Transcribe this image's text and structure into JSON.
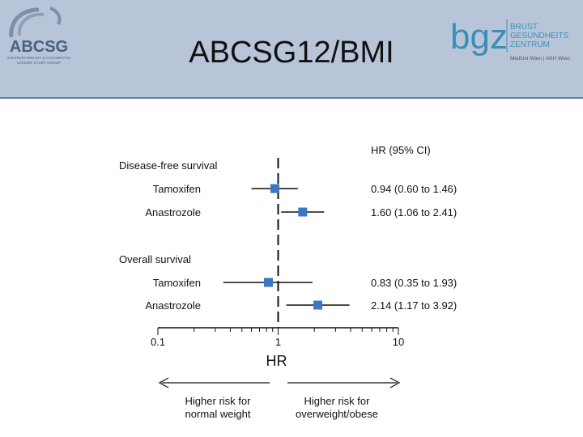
{
  "header": {
    "title": "ABCSG12/BMI",
    "left_logo": {
      "text": "ABCSG",
      "subtitle_line1": "AUSTRIAN BREAST & COLORECTAL",
      "subtitle_line2": "CANCER STUDY GROUP"
    },
    "right_logo": {
      "mark": "bgz",
      "line1": "BRUST",
      "line2": "GESUNDHEITS",
      "line3": "ZENTRUM",
      "line4": "MedUni Wien | AKH Wien",
      "color": "#3b8fb5"
    }
  },
  "chart_data": {
    "type": "forest",
    "column_header": "HR (95% CI)",
    "x_scale": "log",
    "xlim": [
      0.1,
      10
    ],
    "reference_line": 1,
    "xticks": [
      0.1,
      1,
      10
    ],
    "xtick_labels": [
      "0.1",
      "1",
      "10"
    ],
    "xlabel": "HR",
    "marker_color": "#3a78c2",
    "groups": [
      {
        "label": "Disease-free survival",
        "rows": [
          {
            "label": "Tamoxifen",
            "hr": 0.94,
            "lo": 0.6,
            "hi": 1.46,
            "ci_text": "0.94 (0.60 to 1.46)"
          },
          {
            "label": "Anastrozole",
            "hr": 1.6,
            "lo": 1.06,
            "hi": 2.41,
            "ci_text": "1.60 (1.06 to 2.41)"
          }
        ]
      },
      {
        "label": "Overall survival",
        "rows": [
          {
            "label": "Tamoxifen",
            "hr": 0.83,
            "lo": 0.35,
            "hi": 1.93,
            "ci_text": "0.83 (0.35 to 1.93)"
          },
          {
            "label": "Anastrozole",
            "hr": 2.14,
            "lo": 1.17,
            "hi": 3.92,
            "ci_text": "2.14 (1.17 to 3.92)"
          }
        ]
      }
    ],
    "arrows": {
      "left_line1": "Higher risk for",
      "left_line2": "normal weight",
      "right_line1": "Higher risk for",
      "right_line2": "overweight/obese"
    }
  }
}
